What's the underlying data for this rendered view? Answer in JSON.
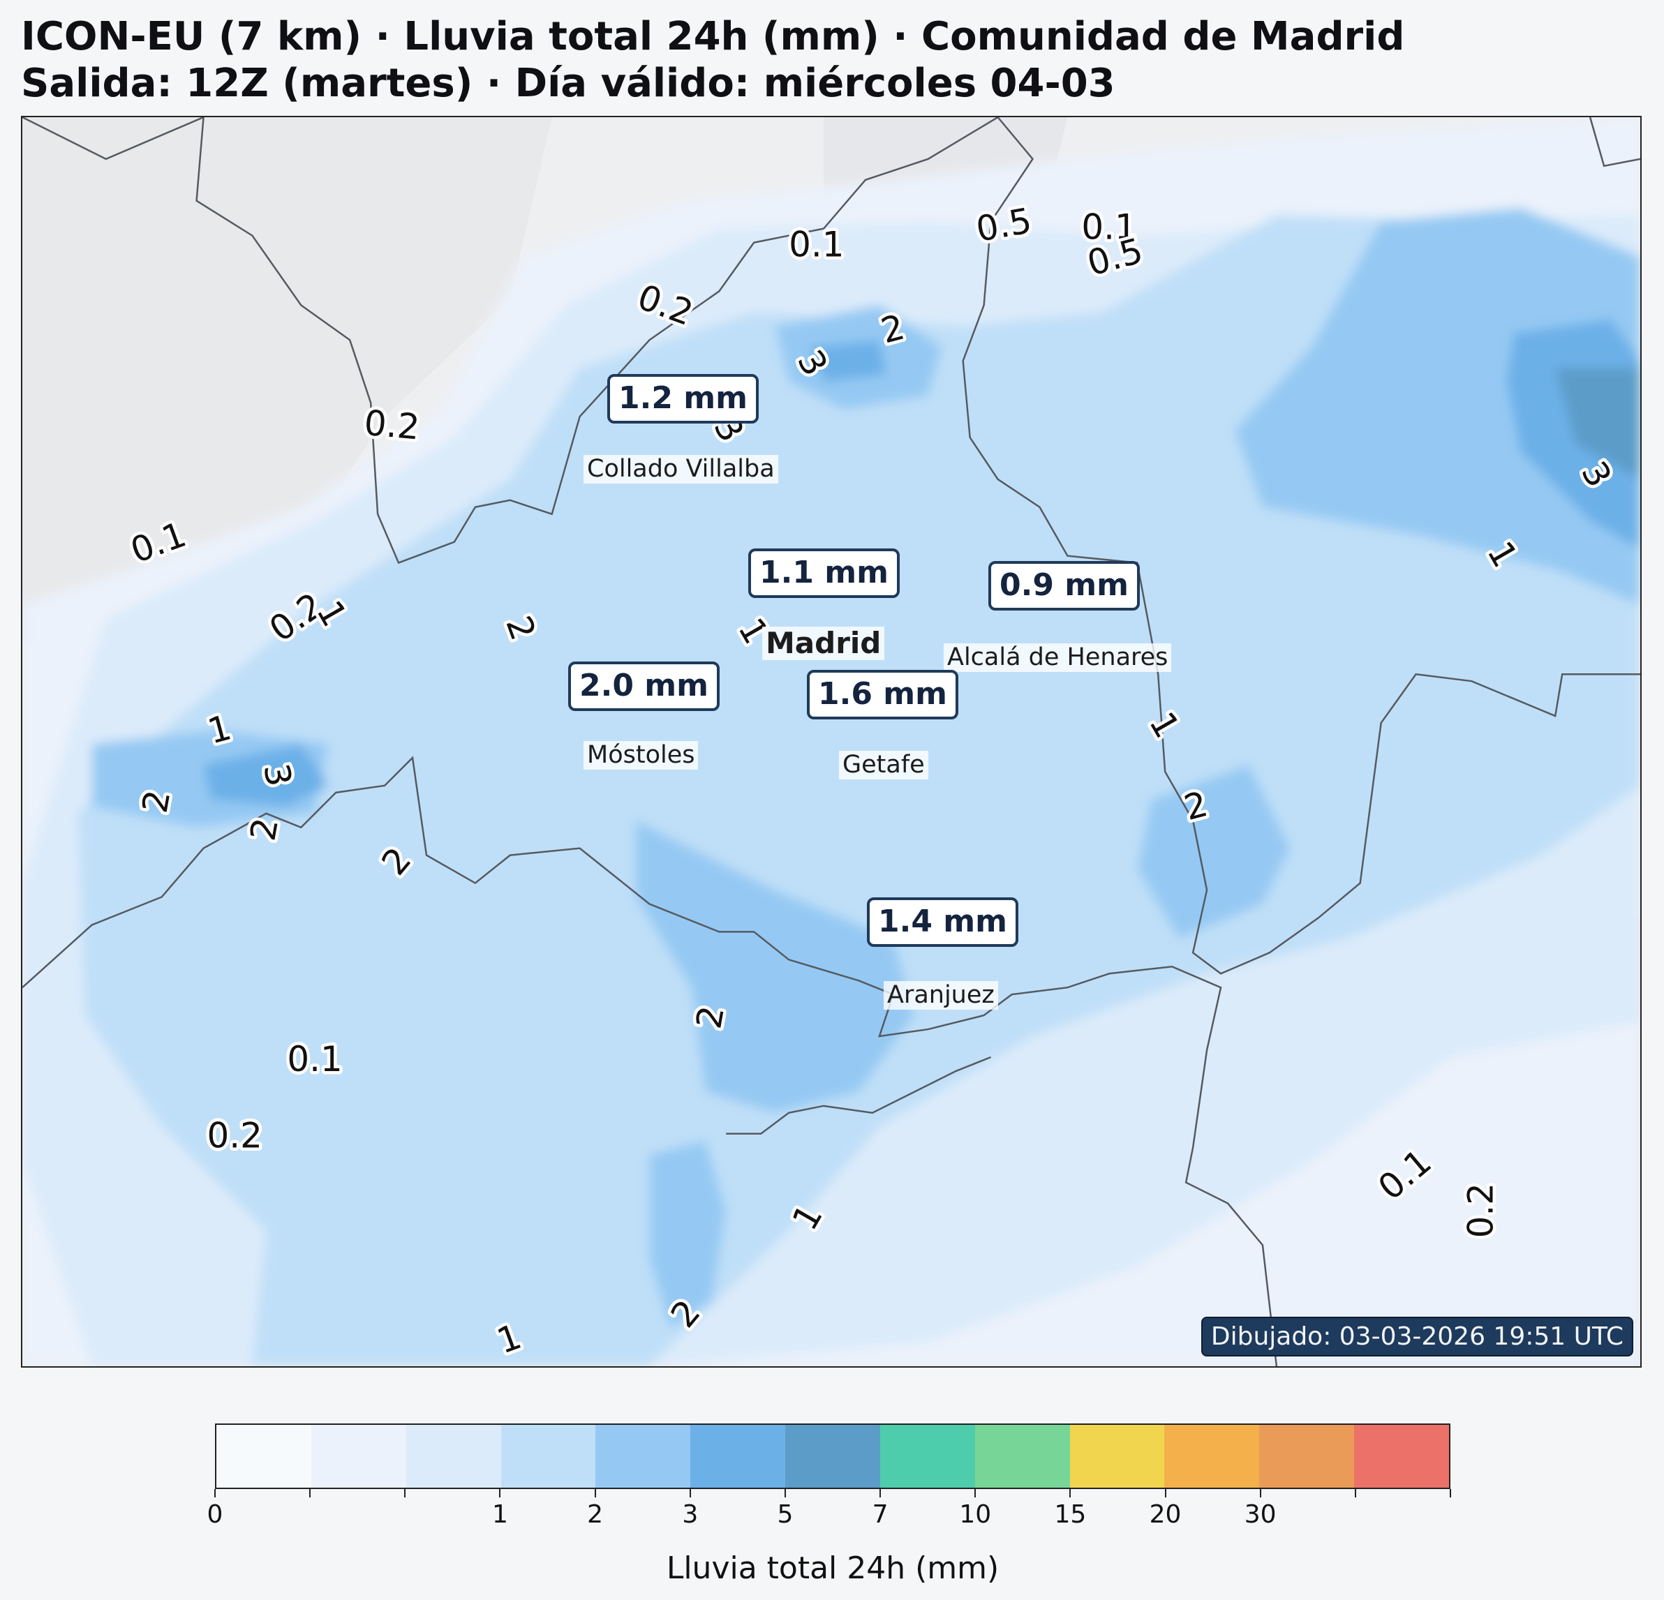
{
  "header": {
    "title_line1": "ICON-EU (7 km) · Lluvia total 24h (mm) · Comunidad de Madrid",
    "title_line2": "Salida: 12Z (martes) · Día válido: miércoles 04-03"
  },
  "map": {
    "timestamp": "Dibujado: 03-03-2026 19:51 UTC",
    "cities": [
      {
        "name": "Collado Villalba",
        "value": "1.2 mm"
      },
      {
        "name": "Madrid",
        "value": "1.1 mm"
      },
      {
        "name": "Alcalá de Henares",
        "value": "0.9 mm"
      },
      {
        "name": "Móstoles",
        "value": "2.0 mm"
      },
      {
        "name": "Getafe",
        "value": "1.6 mm"
      },
      {
        "name": "Aranjuez",
        "value": "1.4 mm"
      }
    ],
    "contour_labels": [
      "0.1",
      "0.2",
      "0.5",
      "1",
      "2",
      "3"
    ]
  },
  "colorbar": {
    "label": "Lluvia total 24h (mm)",
    "tick_labels": [
      "0",
      "1",
      "2",
      "3",
      "5",
      "7",
      "10",
      "15",
      "20",
      "30"
    ],
    "colors": [
      "#f7fafd",
      "#ebf2fb",
      "#dcebfa",
      "#bfdff8",
      "#95c9f3",
      "#6cb0e8",
      "#5b9cc9",
      "#4ecdac",
      "#77d697",
      "#f2d54e",
      "#f4b04a",
      "#eb9b58",
      "#ec7269"
    ]
  },
  "legend_colors": {
    "rain_01": "#ebf2fb",
    "rain_02": "#dcebfa",
    "rain_1": "#bfdff8",
    "rain_2": "#95c9f3",
    "rain_3": "#6cb0e8",
    "rain_5": "#5b9cc9"
  }
}
